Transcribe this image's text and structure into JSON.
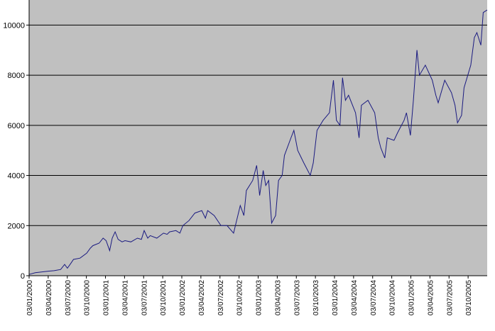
{
  "chart_data": {
    "type": "line",
    "title": "",
    "xlabel": "",
    "ylabel": "",
    "ylim": [
      0,
      11000
    ],
    "yticks": [
      0,
      2000,
      4000,
      6000,
      8000,
      10000
    ],
    "y_tick_labels": [
      "0",
      "2000",
      "4000",
      "6000",
      "8000",
      "10000"
    ],
    "x_tick_labels": [
      "03/01/2000",
      "03/04/2000",
      "03/07/2000",
      "03/10/2000",
      "03/01/2001",
      "03/04/2001",
      "03/07/2001",
      "03/10/2001",
      "03/01/2002",
      "03/04/2002",
      "03/07/2002",
      "03/10/2002",
      "03/01/2003",
      "03/04/2003",
      "03/07/2003",
      "03/10/2003",
      "03/01/2004",
      "03/04/2004",
      "03/07/2004",
      "03/10/2004",
      "03/01/2005",
      "03/04/2005",
      "03/07/2005",
      "03/10/2005"
    ],
    "x_range": [
      "2000-01-03",
      "2005-12-20"
    ],
    "grid": "horizontal",
    "legend": "none",
    "colors": {
      "plot_background": "#c0c0c0",
      "line": "#1a1a80",
      "gridline": "#000000"
    },
    "series": [
      {
        "x": [
          "2000-01-03",
          "2000-02-01",
          "2000-03-01",
          "2000-04-03",
          "2000-05-01",
          "2000-06-01",
          "2000-06-20",
          "2000-07-03",
          "2000-07-20",
          "2000-08-01",
          "2000-09-01",
          "2000-10-03",
          "2000-10-20",
          "2000-11-01",
          "2000-12-01",
          "2000-12-20",
          "2001-01-03",
          "2001-01-20",
          "2001-02-01",
          "2001-02-15",
          "2001-03-01",
          "2001-03-20",
          "2001-04-03",
          "2001-05-01",
          "2001-06-01",
          "2001-06-20",
          "2001-07-03",
          "2001-07-20",
          "2001-08-01",
          "2001-09-01",
          "2001-10-03",
          "2001-10-20",
          "2001-11-01",
          "2001-12-01",
          "2001-12-20",
          "2002-01-03",
          "2002-02-01",
          "2002-03-01",
          "2002-04-03",
          "2002-04-20",
          "2002-05-01",
          "2002-06-01",
          "2002-07-03",
          "2002-08-01",
          "2002-09-01",
          "2002-10-03",
          "2002-10-20",
          "2002-11-01",
          "2002-12-01",
          "2002-12-20",
          "2003-01-03",
          "2003-01-20",
          "2003-02-01",
          "2003-02-15",
          "2003-03-01",
          "2003-03-20",
          "2003-04-03",
          "2003-04-20",
          "2003-05-01",
          "2003-06-01",
          "2003-06-15",
          "2003-07-03",
          "2003-08-01",
          "2003-09-01",
          "2003-09-15",
          "2003-10-03",
          "2003-11-01",
          "2003-12-01",
          "2003-12-20",
          "2004-01-03",
          "2004-01-20",
          "2004-02-01",
          "2004-02-15",
          "2004-03-01",
          "2004-04-03",
          "2004-04-20",
          "2004-05-01",
          "2004-06-01",
          "2004-07-03",
          "2004-07-20",
          "2004-08-01",
          "2004-08-20",
          "2004-09-01",
          "2004-10-03",
          "2004-10-20",
          "2004-11-01",
          "2004-11-20",
          "2004-12-01",
          "2004-12-20",
          "2005-01-03",
          "2005-01-20",
          "2005-02-01",
          "2005-03-01",
          "2005-04-03",
          "2005-04-20",
          "2005-05-01",
          "2005-06-01",
          "2005-07-03",
          "2005-07-20",
          "2005-08-01",
          "2005-08-20",
          "2005-09-01",
          "2005-10-03",
          "2005-10-20",
          "2005-11-01",
          "2005-11-20",
          "2005-12-01",
          "2005-12-20"
        ],
        "y": [
          50,
          120,
          150,
          180,
          200,
          250,
          450,
          300,
          500,
          650,
          700,
          900,
          1100,
          1200,
          1300,
          1500,
          1400,
          1000,
          1500,
          1750,
          1450,
          1350,
          1400,
          1350,
          1500,
          1450,
          1800,
          1500,
          1600,
          1500,
          1700,
          1650,
          1750,
          1800,
          1700,
          2000,
          2200,
          2500,
          2600,
          2300,
          2600,
          2400,
          2000,
          2000,
          1700,
          2800,
          2400,
          3400,
          3800,
          4400,
          3200,
          4200,
          3600,
          3800,
          2100,
          2400,
          3800,
          4000,
          4800,
          5500,
          5800,
          5000,
          4500,
          4000,
          4500,
          5800,
          6200,
          6500,
          7800,
          6200,
          6000,
          7900,
          7000,
          7200,
          6500,
          5500,
          6800,
          7000,
          6500,
          5500,
          5100,
          4700,
          5500,
          5400,
          5700,
          5900,
          6200,
          6500,
          5600,
          7000,
          9000,
          8000,
          8400,
          7800,
          7200,
          6900,
          7800,
          7300,
          6800,
          6100,
          6400,
          7500,
          8400,
          9500,
          9700,
          9200,
          10500,
          10600
        ]
      }
    ]
  }
}
